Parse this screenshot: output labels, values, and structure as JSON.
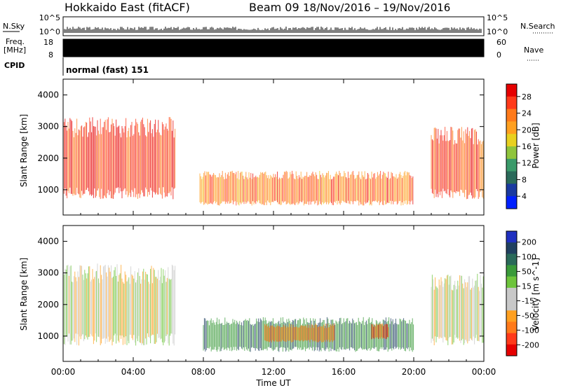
{
  "header": {
    "radar": "Hokkaido East (fitACF)",
    "beam": "Beam 09",
    "date_range": "18/Nov/2016 – 19/Nov/2016"
  },
  "top_panels": {
    "nsky_label": "N.Sky",
    "nsky_ticks": [
      "10^5",
      "10^0"
    ],
    "nsearch_label": "N.Search",
    "nsearch_ticks": [
      "10^5",
      "10^0"
    ],
    "freq_label": [
      "Freq.",
      "[MHz]"
    ],
    "freq_ticks": [
      "18",
      "8"
    ],
    "nave_label": "Nave",
    "nave_ticks": [
      "60",
      "0"
    ],
    "cpid_label": "CPID",
    "cpid_text": "normal (fast) 151"
  },
  "x_axis": {
    "label": "Time UT",
    "ticks": [
      "00:00",
      "04:00",
      "08:00",
      "12:00",
      "16:00",
      "20:00",
      "00:00"
    ]
  },
  "power_colorbar": {
    "label": "Power [dB]",
    "ticks": [
      "28",
      "24",
      "20",
      "16",
      "12",
      "8",
      "4"
    ],
    "colors": [
      "#e60000",
      "#ff3a1a",
      "#ff7a1a",
      "#ffa020",
      "#e8d020",
      "#8fc43c",
      "#3a9a6a",
      "#2a6a5a",
      "#1a3aa0",
      "#0020ff"
    ]
  },
  "velocity_colorbar": {
    "label": "Velocity [m s^-1]",
    "ticks": [
      "200",
      "100",
      "50",
      "15",
      "-15",
      "-50",
      "-100",
      "-200"
    ],
    "colors": [
      "#2030c0",
      "#204060",
      "#2a6a5a",
      "#3a9a3a",
      "#6ec43c",
      "#c8c8c8",
      "#c8c8c8",
      "#ffa020",
      "#ff7a1a",
      "#ff3a1a",
      "#e60000"
    ]
  },
  "chart_data": [
    {
      "type": "heatmap",
      "title": "",
      "xlabel": "",
      "ylabel": "Slant Range [km]",
      "y_ticks": [
        "1000",
        "2000",
        "3000",
        "4000"
      ],
      "ylim": [
        200,
        4500
      ],
      "xlim_hours": [
        0,
        24
      ],
      "quantity": "Power [dB]",
      "regions": [
        {
          "t_start": 0,
          "t_end": 6.4,
          "r_low": 700,
          "r_high": 3300,
          "value_db": 26
        },
        {
          "t_start": 7.8,
          "t_end": 20.0,
          "r_low": 500,
          "r_high": 1600,
          "value_db": 22
        },
        {
          "t_start": 21.0,
          "t_end": 24.0,
          "r_low": 700,
          "r_high": 3000,
          "value_db": 25
        }
      ]
    },
    {
      "type": "heatmap",
      "title": "",
      "xlabel": "Time UT",
      "ylabel": "Slant Range [km]",
      "y_ticks": [
        "1000",
        "2000",
        "3000",
        "4000"
      ],
      "ylim": [
        200,
        4500
      ],
      "xlim_hours": [
        0,
        24
      ],
      "quantity": "Velocity [m s^-1]",
      "regions": [
        {
          "t_start": 0,
          "t_end": 6.4,
          "r_low": 700,
          "r_high": 3300,
          "value_ms": 0
        },
        {
          "t_start": 8.0,
          "t_end": 20.0,
          "r_low": 500,
          "r_high": 1600,
          "value_ms": 60
        },
        {
          "t_start": 11.5,
          "t_end": 15.5,
          "r_low": 800,
          "r_high": 1400,
          "value_ms": -70
        },
        {
          "t_start": 17.6,
          "t_end": 18.6,
          "r_low": 900,
          "r_high": 1400,
          "value_ms": -80
        },
        {
          "t_start": 21.0,
          "t_end": 24.0,
          "r_low": 700,
          "r_high": 3000,
          "value_ms": 0
        }
      ]
    }
  ]
}
